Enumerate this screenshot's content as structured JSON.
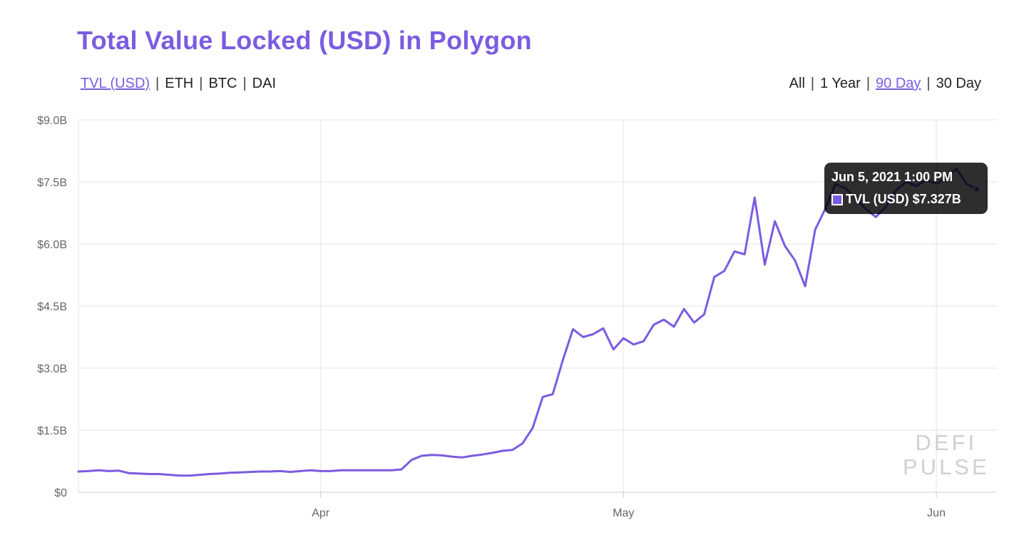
{
  "header": {
    "title": "Total Value Locked (USD) in Polygon",
    "metrics": [
      {
        "label": "TVL (USD)",
        "active": true
      },
      {
        "label": "ETH",
        "active": false
      },
      {
        "label": "BTC",
        "active": false
      },
      {
        "label": "DAI",
        "active": false
      }
    ],
    "ranges": [
      {
        "label": "All",
        "active": false
      },
      {
        "label": "1 Year",
        "active": false
      },
      {
        "label": "90 Day",
        "active": true
      },
      {
        "label": "30 Day",
        "active": false
      }
    ],
    "separator": "|"
  },
  "tooltip": {
    "date": "Jun 5, 2021 1:00 PM",
    "series": "TVL (USD)",
    "value": "$7.327B"
  },
  "watermark": {
    "line1": "DEFI",
    "line2": "PULSE"
  },
  "colors": {
    "accent": "#7b5ce0",
    "line": "#7b5ce0",
    "grid": "#e6e6e6",
    "tooltip_bg": "#000000"
  },
  "chart_data": {
    "type": "line",
    "title": "Total Value Locked (USD) in Polygon",
    "xlabel": "",
    "ylabel": "",
    "ylim": [
      0,
      9.0
    ],
    "y_unit": "billion USD",
    "yticks": [
      0,
      1.5,
      3.0,
      4.5,
      6.0,
      7.5,
      9.0
    ],
    "ytick_labels": [
      "$0",
      "$1.5B",
      "$3.0B",
      "$4.5B",
      "$6.0B",
      "$7.5B",
      "$9.0B"
    ],
    "xlim": [
      "2021-03-08",
      "2021-06-07"
    ],
    "xticks": [
      {
        "date": "2021-04-01",
        "label": "Apr"
      },
      {
        "date": "2021-05-01",
        "label": "May"
      },
      {
        "date": "2021-06-01",
        "label": "Jun"
      }
    ],
    "grid": true,
    "series": [
      {
        "name": "TVL (USD)",
        "points": [
          [
            "2021-03-08",
            0.5
          ],
          [
            "2021-03-09",
            0.51
          ],
          [
            "2021-03-10",
            0.53
          ],
          [
            "2021-03-11",
            0.51
          ],
          [
            "2021-03-12",
            0.52
          ],
          [
            "2021-03-13",
            0.46
          ],
          [
            "2021-03-14",
            0.45
          ],
          [
            "2021-03-15",
            0.44
          ],
          [
            "2021-03-16",
            0.44
          ],
          [
            "2021-03-17",
            0.42
          ],
          [
            "2021-03-18",
            0.4
          ],
          [
            "2021-03-19",
            0.4
          ],
          [
            "2021-03-20",
            0.42
          ],
          [
            "2021-03-21",
            0.44
          ],
          [
            "2021-03-22",
            0.45
          ],
          [
            "2021-03-23",
            0.47
          ],
          [
            "2021-03-24",
            0.48
          ],
          [
            "2021-03-25",
            0.49
          ],
          [
            "2021-03-26",
            0.5
          ],
          [
            "2021-03-27",
            0.5
          ],
          [
            "2021-03-28",
            0.51
          ],
          [
            "2021-03-29",
            0.49
          ],
          [
            "2021-03-30",
            0.51
          ],
          [
            "2021-03-31",
            0.53
          ],
          [
            "2021-04-01",
            0.51
          ],
          [
            "2021-04-02",
            0.51
          ],
          [
            "2021-04-03",
            0.53
          ],
          [
            "2021-04-04",
            0.53
          ],
          [
            "2021-04-05",
            0.53
          ],
          [
            "2021-04-06",
            0.53
          ],
          [
            "2021-04-07",
            0.53
          ],
          [
            "2021-04-08",
            0.53
          ],
          [
            "2021-04-09",
            0.55
          ],
          [
            "2021-04-10",
            0.78
          ],
          [
            "2021-04-11",
            0.88
          ],
          [
            "2021-04-12",
            0.9
          ],
          [
            "2021-04-13",
            0.89
          ],
          [
            "2021-04-14",
            0.86
          ],
          [
            "2021-04-15",
            0.84
          ],
          [
            "2021-04-16",
            0.88
          ],
          [
            "2021-04-17",
            0.91
          ],
          [
            "2021-04-18",
            0.95
          ],
          [
            "2021-04-19",
            1.0
          ],
          [
            "2021-04-20",
            1.02
          ],
          [
            "2021-04-21",
            1.18
          ],
          [
            "2021-04-22",
            1.55
          ],
          [
            "2021-04-23",
            2.3
          ],
          [
            "2021-04-24",
            2.37
          ],
          [
            "2021-04-25",
            3.2
          ],
          [
            "2021-04-26",
            3.94
          ],
          [
            "2021-04-27",
            3.75
          ],
          [
            "2021-04-28",
            3.82
          ],
          [
            "2021-04-29",
            3.96
          ],
          [
            "2021-04-30",
            3.45
          ],
          [
            "2021-05-01",
            3.72
          ],
          [
            "2021-05-02",
            3.57
          ],
          [
            "2021-05-03",
            3.65
          ],
          [
            "2021-05-04",
            4.05
          ],
          [
            "2021-05-05",
            4.17
          ],
          [
            "2021-05-06",
            4.0
          ],
          [
            "2021-05-07",
            4.43
          ],
          [
            "2021-05-08",
            4.1
          ],
          [
            "2021-05-09",
            4.3
          ],
          [
            "2021-05-10",
            5.2
          ],
          [
            "2021-05-11",
            5.35
          ],
          [
            "2021-05-12",
            5.82
          ],
          [
            "2021-05-13",
            5.75
          ],
          [
            "2021-05-14",
            7.12
          ],
          [
            "2021-05-15",
            5.5
          ],
          [
            "2021-05-16",
            6.55
          ],
          [
            "2021-05-17",
            5.95
          ],
          [
            "2021-05-18",
            5.6
          ],
          [
            "2021-05-19",
            4.98
          ],
          [
            "2021-05-20",
            6.35
          ],
          [
            "2021-05-21",
            6.85
          ],
          [
            "2021-05-22",
            7.45
          ],
          [
            "2021-05-23",
            7.35
          ],
          [
            "2021-05-24",
            7.1
          ],
          [
            "2021-05-25",
            6.85
          ],
          [
            "2021-05-26",
            6.65
          ],
          [
            "2021-05-27",
            6.9
          ],
          [
            "2021-05-28",
            7.3
          ],
          [
            "2021-05-29",
            7.5
          ],
          [
            "2021-05-30",
            7.4
          ],
          [
            "2021-05-31",
            7.55
          ],
          [
            "2021-06-01",
            7.45
          ],
          [
            "2021-06-02",
            7.6
          ],
          [
            "2021-06-03",
            7.82
          ],
          [
            "2021-06-04",
            7.45
          ],
          [
            "2021-06-05",
            7.327
          ]
        ]
      }
    ]
  }
}
